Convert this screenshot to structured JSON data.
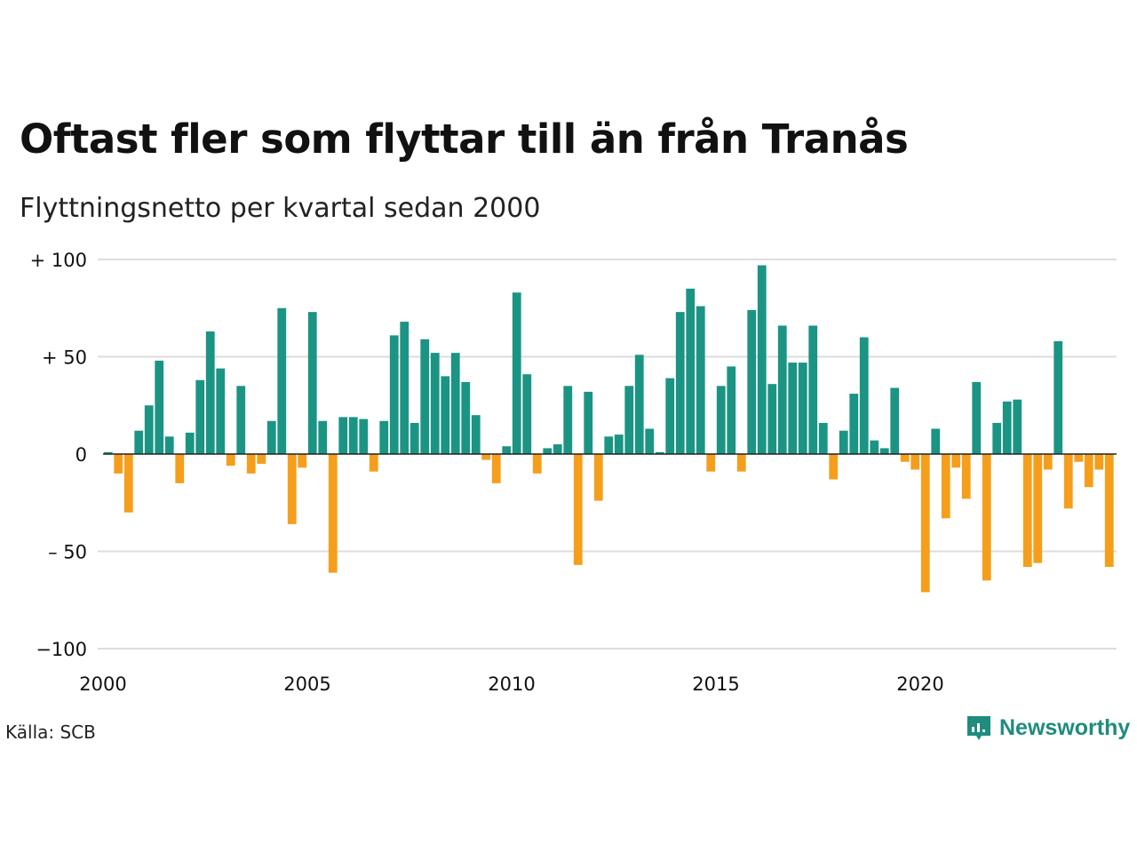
{
  "title": "Oftast fler som flyttar till än från Tranås",
  "subtitle": "Flyttningsnetto per kvartal sedan 2000",
  "source": "Källa: SCB",
  "brand": "Newsworthy",
  "colors": {
    "positive": "#1b9484",
    "negative": "#f59e1c",
    "grid": "#dddddd",
    "brand": "#1e8c7e"
  },
  "chart_data": {
    "type": "bar",
    "x_start": "2000 Q1",
    "x_tick_labels": [
      "2000",
      "2005",
      "2010",
      "2015",
      "2020"
    ],
    "y_tick_labels": [
      "+ 100",
      "+  50",
      "0",
      "– 50",
      "−100"
    ],
    "y_ticks": [
      100,
      50,
      0,
      -50,
      -100
    ],
    "ylim": [
      -100,
      100
    ],
    "values": [
      1,
      -10,
      -30,
      12,
      25,
      48,
      9,
      -15,
      11,
      38,
      63,
      44,
      -6,
      35,
      -10,
      -5,
      17,
      75,
      -36,
      -7,
      73,
      17,
      -61,
      19,
      19,
      18,
      -9,
      17,
      61,
      68,
      16,
      59,
      52,
      40,
      52,
      37,
      20,
      -3,
      -15,
      4,
      83,
      41,
      -10,
      3,
      5,
      35,
      -57,
      32,
      -24,
      9,
      10,
      35,
      51,
      13,
      1,
      39,
      73,
      85,
      76,
      -9,
      35,
      45,
      -9,
      74,
      97,
      36,
      66,
      47,
      47,
      66,
      16,
      -13,
      12,
      31,
      60,
      7,
      3,
      34,
      -4,
      -8,
      -71,
      13,
      -33,
      -7,
      -23,
      37,
      -65,
      16,
      27,
      28,
      -58,
      -56,
      -8,
      58,
      -28,
      -4,
      -17,
      -8,
      -58
    ],
    "grid": true
  }
}
